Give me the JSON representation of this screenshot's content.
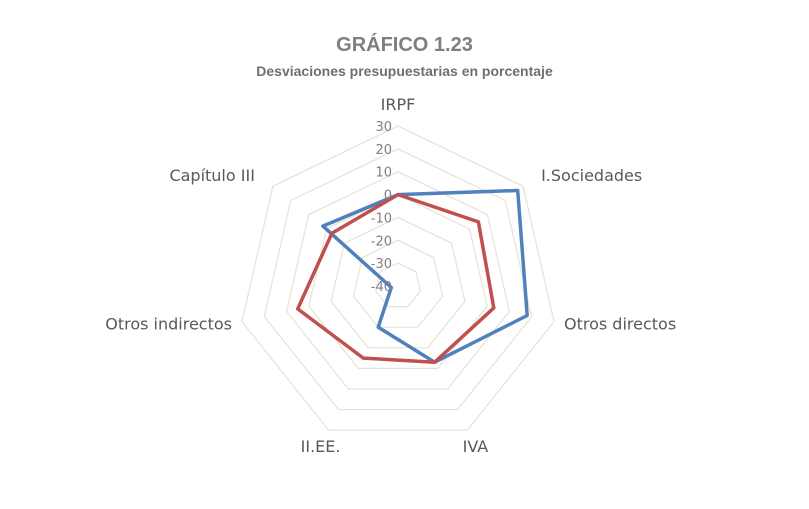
{
  "chart_data": {
    "type": "radar",
    "title": "GRÁFICO 1.23",
    "subtitle": "Desviaciones presupuestarias en porcentaje",
    "categories": [
      "IRPF",
      "I.Sociedades",
      "Otros directos",
      "IVA",
      "II.EE.",
      "Otros indirectos",
      "Capítulo III"
    ],
    "ticks": [
      30,
      20,
      10,
      0,
      -10,
      -20,
      -30,
      -40
    ],
    "rlim": [
      -40,
      30
    ],
    "grid": true,
    "legend": "none",
    "series": [
      {
        "color": "#4f81bd",
        "values": [
          0,
          27,
          18,
          -3,
          -20,
          -37,
          2
        ]
      },
      {
        "color": "#c0504d",
        "values": [
          0,
          5,
          3,
          -3,
          -5,
          5,
          -3
        ]
      }
    ]
  }
}
